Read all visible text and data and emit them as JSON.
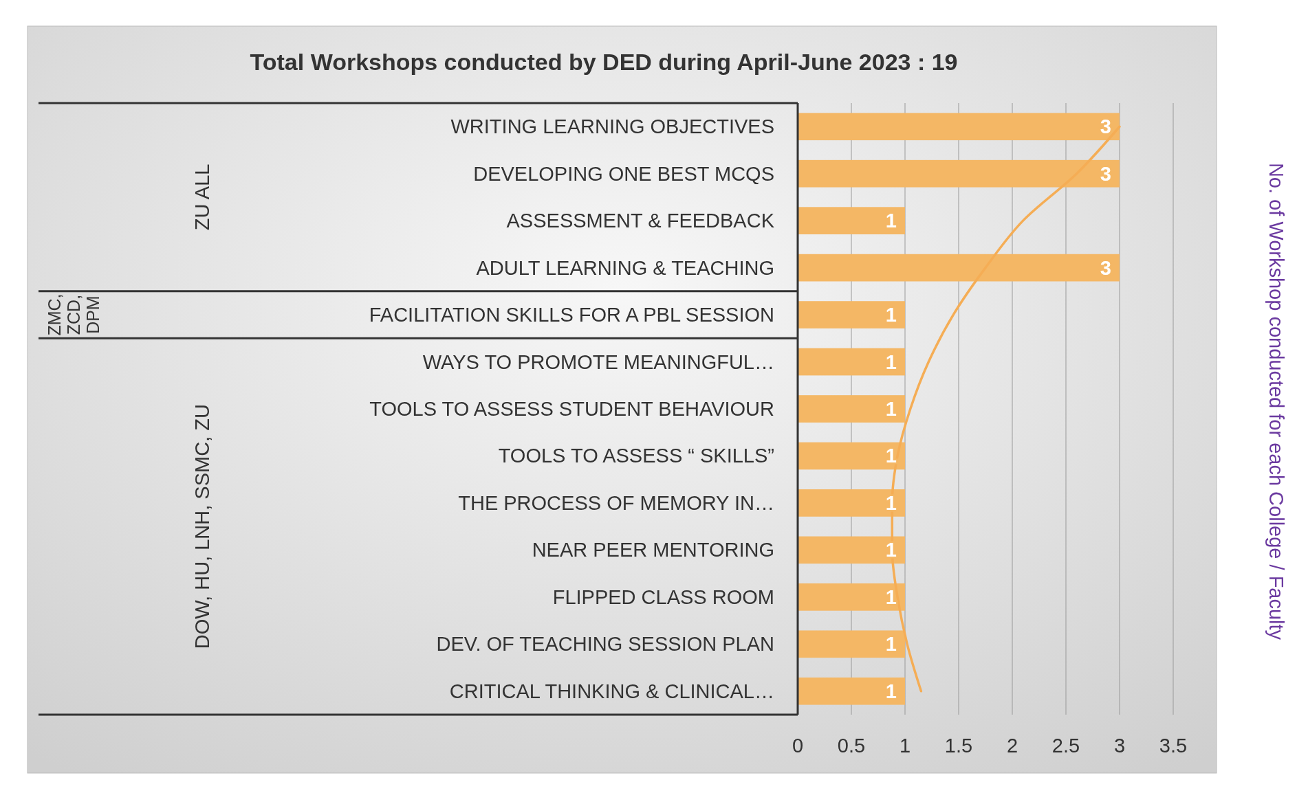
{
  "chart_data": {
    "type": "bar",
    "orientation": "horizontal",
    "title": "Total Workshops conducted by DED during April-June 2023 : 19",
    "y2label": "No. of Workshop conducted for each College / Faculty",
    "categories": [
      "WRITING LEARNING OBJECTIVES",
      "DEVELOPING ONE BEST MCQS",
      "ASSESSMENT & FEEDBACK",
      "ADULT LEARNING & TEACHING",
      "FACILITATION SKILLS FOR A PBL SESSION",
      "WAYS TO PROMOTE MEANINGFUL…",
      "TOOLS TO ASSESS STUDENT BEHAVIOUR",
      "TOOLS TO ASSESS “ SKILLS”",
      "THE PROCESS OF MEMORY IN…",
      "NEAR PEER MENTORING",
      "FLIPPED CLASS ROOM ",
      "DEV. OF TEACHING SESSION PLAN",
      "CRITICAL THINKING & CLINICAL…"
    ],
    "series": [
      {
        "color": "#f4b765",
        "values": [
          3,
          3,
          1,
          3,
          1,
          1,
          1,
          1,
          1,
          1,
          1,
          1,
          1
        ],
        "value_labels": [
          "3",
          "3",
          "1",
          "3",
          "1",
          "1",
          "1",
          "1",
          "1",
          "1",
          "1",
          "1",
          "1"
        ]
      },
      {
        "type": "line",
        "color": "#f5ad55",
        "values": [
          3.0,
          2.6,
          2.1,
          1.75,
          1.45,
          1.22,
          1.05,
          0.93,
          0.88,
          0.88,
          0.93,
          1.02,
          1.15
        ]
      }
    ],
    "annotations": [
      "ZU ALL",
      "ZMC, ZCD, DPM",
      "DOW, HU, LNH, SSMC, ZU"
    ],
    "xlim": [
      0,
      3.5
    ],
    "xticks": [
      0,
      0.5,
      1,
      1.5,
      2,
      2.5,
      3,
      3.5
    ],
    "grid": "x"
  }
}
